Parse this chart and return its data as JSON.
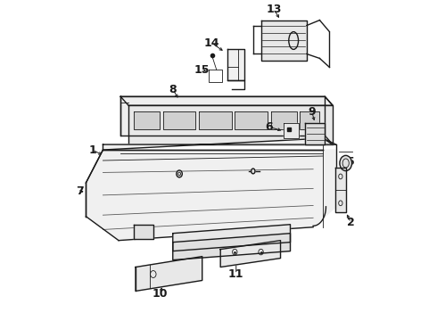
{
  "bg_color": "#ffffff",
  "line_color": "#1a1a1a",
  "figsize": [
    4.9,
    3.6
  ],
  "dpi": 100,
  "label_fontsize": 9,
  "label_fontweight": "bold"
}
